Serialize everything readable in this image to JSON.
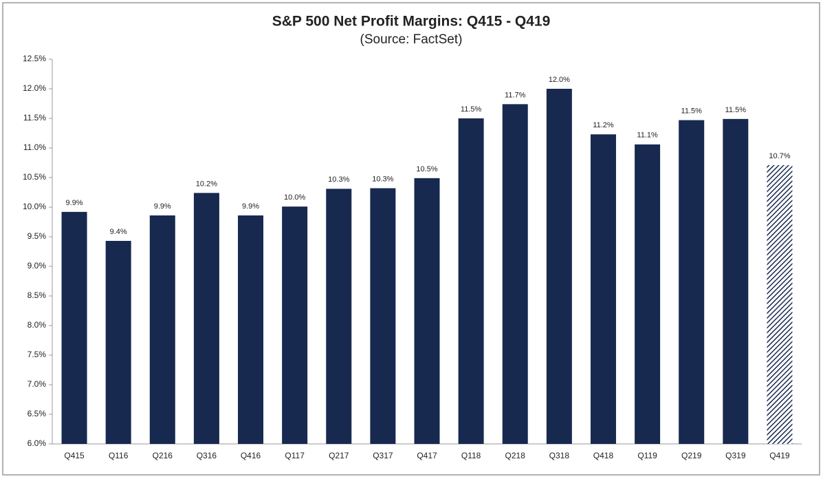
{
  "chart_data": {
    "type": "bar",
    "title": "S&P 500 Net Profit Margins: Q415 - Q419",
    "subtitle": "(Source: FactSet)",
    "categories": [
      "Q415",
      "Q116",
      "Q216",
      "Q316",
      "Q416",
      "Q117",
      "Q217",
      "Q317",
      "Q417",
      "Q118",
      "Q218",
      "Q318",
      "Q418",
      "Q119",
      "Q219",
      "Q319",
      "Q419"
    ],
    "values": [
      9.92,
      9.43,
      9.86,
      10.24,
      9.86,
      10.01,
      10.31,
      10.32,
      10.49,
      11.5,
      11.74,
      12.0,
      11.23,
      11.06,
      11.47,
      11.49,
      10.71
    ],
    "value_labels": [
      "9.9%",
      "9.4%",
      "9.9%",
      "10.2%",
      "9.9%",
      "10.0%",
      "10.3%",
      "10.3%",
      "10.5%",
      "11.5%",
      "11.7%",
      "12.0%",
      "11.2%",
      "11.1%",
      "11.5%",
      "11.5%",
      "10.7%"
    ],
    "color": "#17294f",
    "patterns": [
      "solid",
      "solid",
      "solid",
      "solid",
      "solid",
      "solid",
      "solid",
      "solid",
      "solid",
      "solid",
      "solid",
      "solid",
      "solid",
      "solid",
      "solid",
      "solid",
      "hatched"
    ],
    "ylim": [
      6,
      12.5
    ],
    "yticks": [
      {
        "value": 6,
        "label": "6.0%"
      },
      {
        "value": 6.5,
        "label": "6.5%"
      },
      {
        "value": 7,
        "label": "7.0%"
      },
      {
        "value": 7.5,
        "label": "7.5%"
      },
      {
        "value": 8,
        "label": "8.0%"
      },
      {
        "value": 8.5,
        "label": "8.5%"
      },
      {
        "value": 9,
        "label": "9.0%"
      },
      {
        "value": 9.5,
        "label": "9.5%"
      },
      {
        "value": 10,
        "label": "10.0%"
      },
      {
        "value": 10.5,
        "label": "10.5%"
      },
      {
        "value": 11,
        "label": "11.0%"
      },
      {
        "value": 11.5,
        "label": "11.5%"
      },
      {
        "value": 12,
        "label": "12.0%"
      },
      {
        "value": 12.5,
        "label": "12.5%"
      }
    ],
    "grid": false
  }
}
